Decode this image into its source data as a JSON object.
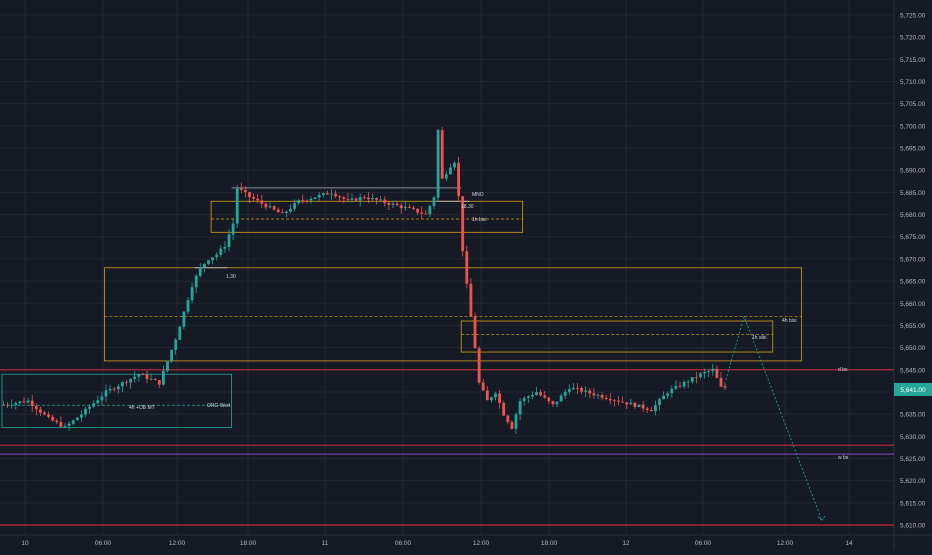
{
  "colors": {
    "background": "#161a25",
    "grid": "#232733",
    "axis_text": "#b2b5be",
    "up": "#26a69a",
    "down": "#ef5350",
    "zone": "#d4a017",
    "teal_zone": "#26a69a",
    "red_line": "#e5303a",
    "purple_line": "#9c4fd6",
    "price_tag": "#26a69a",
    "projection": "#26a69a"
  },
  "price_axis": {
    "ticks": [
      "5,725.00",
      "5,720.00",
      "5,715.00",
      "5,710.00",
      "5,705.00",
      "5,700.00",
      "5,695.00",
      "5,690.00",
      "5,685.00",
      "5,680.00",
      "5,675.00",
      "5,670.00",
      "5,665.00",
      "5,660.00",
      "5,655.00",
      "5,650.00",
      "5,645.00",
      "5,640.00",
      "5,635.00",
      "5,630.00",
      "5,625.00",
      "5,620.00",
      "5,615.00",
      "5,610.00"
    ],
    "last_price": "5,641.00"
  },
  "time_axis": {
    "ticks": [
      "10",
      "06:00",
      "12:00",
      "18:00",
      "11",
      "06:00",
      "12:00",
      "18:00",
      "12",
      "06:00",
      "12:00",
      "14"
    ]
  },
  "annotations": {
    "mno": "MNO",
    "m30": "18.30",
    "h1_bisi": "1h bisi",
    "m130": "1.30",
    "h4_bisi": "4h bisi",
    "h1_sibi": "1h sibi",
    "d_bs": "d bs",
    "w_bs": "w bs",
    "h4_ob": "4h +OB MT",
    "org_wed": "ORG Wed"
  },
  "chart_data": {
    "type": "candlestick",
    "ylim": [
      5608,
      5728
    ],
    "grid": true,
    "legend": "none",
    "x_ticks": [
      "10",
      "06:00",
      "12:00",
      "18:00",
      "11",
      "06:00",
      "12:00",
      "18:00",
      "12",
      "06:00",
      "12:00",
      "14"
    ],
    "price_series": [
      {
        "t": 0,
        "p": 5637
      },
      {
        "t": 7,
        "p": 5638
      },
      {
        "t": 12,
        "p": 5634
      },
      {
        "t": 16,
        "p": 5632
      },
      {
        "t": 20,
        "p": 5635
      },
      {
        "t": 26,
        "p": 5640
      },
      {
        "t": 30,
        "p": 5642
      },
      {
        "t": 34,
        "p": 5644
      },
      {
        "t": 39,
        "p": 5642
      },
      {
        "t": 41,
        "p": 5647
      },
      {
        "t": 43,
        "p": 5652
      },
      {
        "t": 45,
        "p": 5658
      },
      {
        "t": 47,
        "p": 5664
      },
      {
        "t": 49,
        "p": 5668
      },
      {
        "t": 51,
        "p": 5670
      },
      {
        "t": 53,
        "p": 5671
      },
      {
        "t": 55,
        "p": 5673
      },
      {
        "t": 57,
        "p": 5678
      },
      {
        "t": 58,
        "p": 5686
      },
      {
        "t": 61,
        "p": 5684
      },
      {
        "t": 65,
        "p": 5682
      },
      {
        "t": 69,
        "p": 5680
      },
      {
        "t": 73,
        "p": 5683
      },
      {
        "t": 77,
        "p": 5684
      },
      {
        "t": 81,
        "p": 5685
      },
      {
        "t": 85,
        "p": 5683
      },
      {
        "t": 89,
        "p": 5684
      },
      {
        "t": 93,
        "p": 5683
      },
      {
        "t": 97,
        "p": 5682
      },
      {
        "t": 101,
        "p": 5681
      },
      {
        "t": 104,
        "p": 5680
      },
      {
        "t": 106,
        "p": 5684
      },
      {
        "t": 107,
        "p": 5699
      },
      {
        "t": 108,
        "p": 5688
      },
      {
        "t": 110,
        "p": 5691
      },
      {
        "t": 111,
        "p": 5692
      },
      {
        "t": 112,
        "p": 5684
      },
      {
        "t": 113,
        "p": 5672
      },
      {
        "t": 114,
        "p": 5664
      },
      {
        "t": 115,
        "p": 5657
      },
      {
        "t": 116,
        "p": 5650
      },
      {
        "t": 117,
        "p": 5642
      },
      {
        "t": 119,
        "p": 5638
      },
      {
        "t": 121,
        "p": 5640
      },
      {
        "t": 123,
        "p": 5635
      },
      {
        "t": 125,
        "p": 5632
      },
      {
        "t": 127,
        "p": 5638
      },
      {
        "t": 131,
        "p": 5640
      },
      {
        "t": 135,
        "p": 5637
      },
      {
        "t": 139,
        "p": 5641
      },
      {
        "t": 143,
        "p": 5640
      },
      {
        "t": 147,
        "p": 5639
      },
      {
        "t": 151,
        "p": 5638
      },
      {
        "t": 155,
        "p": 5637
      },
      {
        "t": 159,
        "p": 5636
      },
      {
        "t": 163,
        "p": 5640
      },
      {
        "t": 167,
        "p": 5642
      },
      {
        "t": 171,
        "p": 5644
      },
      {
        "t": 174,
        "p": 5645
      },
      {
        "t": 176,
        "p": 5641
      }
    ],
    "n_bars": 177,
    "last_price": 5641,
    "zones": [
      {
        "label": "1h bisi",
        "t0": 51,
        "t1": 127,
        "y0": 5676,
        "y1": 5683,
        "mid": 5679
      },
      {
        "label": "4h bisi",
        "t0": 25,
        "t1": 195,
        "y0": 5647,
        "y1": 5668,
        "mid": 5657
      },
      {
        "label": "1h sibi",
        "t0": 112,
        "t1": 188,
        "y0": 5649,
        "y1": 5656,
        "mid": 5653
      }
    ],
    "teal_box": {
      "label": "4h +OB MT",
      "t0": 0,
      "t1": 56,
      "y0": 5632,
      "y1": 5644
    },
    "org_wed": {
      "label": "ORG Wed",
      "y": 5637
    },
    "levels": [
      {
        "label": "MNO",
        "y": 5686
      },
      {
        "label": "18.30",
        "y": 5683
      },
      {
        "label": "1.30",
        "y": 5668
      },
      {
        "label": "d bs",
        "y": 5645
      },
      {
        "label": "w bs",
        "y": 5626
      }
    ],
    "red_lines": [
      5645,
      5628,
      5610
    ],
    "purple_line": 5626,
    "projection": [
      {
        "t": 176,
        "p": 5641
      },
      {
        "t": 181,
        "p": 5657
      },
      {
        "t": 200,
        "p": 5611
      }
    ]
  }
}
